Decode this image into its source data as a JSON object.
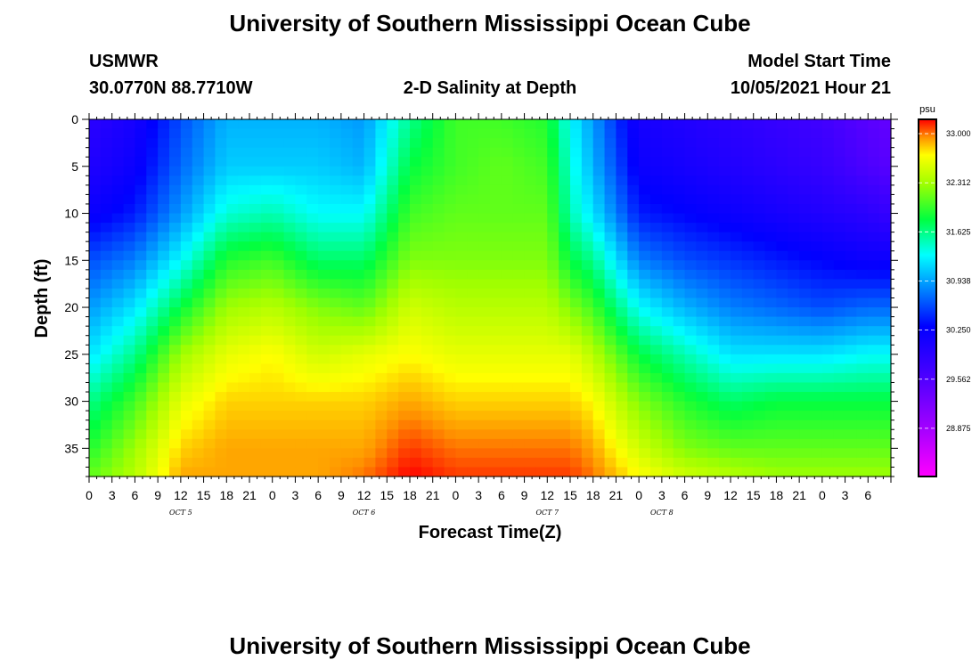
{
  "header": {
    "title_top": "University of Southern Mississippi Ocean Cube",
    "title_bottom": "University of Southern Mississippi Ocean Cube",
    "station": "USMWR",
    "coords": "30.0770N  88.7710W",
    "plot_title": "2-D Salinity at Depth",
    "model_label": "Model Start Time",
    "model_time": "10/05/2021 Hour 21"
  },
  "chart_data": {
    "type": "heatmap",
    "xlabel": "Forecast Time(Z)",
    "ylabel": "Depth (ft)",
    "x_ticks": [
      "0",
      "3",
      "6",
      "9",
      "12",
      "15",
      "18",
      "21",
      "0",
      "3",
      "6",
      "9",
      "12",
      "15",
      "18",
      "21",
      "0",
      "3",
      "6",
      "9",
      "12",
      "15",
      "18",
      "21",
      "0",
      "3",
      "6",
      "9",
      "12",
      "15",
      "18",
      "21",
      "0",
      "3",
      "6"
    ],
    "x_hours": [
      0,
      105
    ],
    "date_labels": [
      {
        "label": "OCT 5",
        "hour": 12
      },
      {
        "label": "OCT 6",
        "hour": 36
      },
      {
        "label": "OCT 7",
        "hour": 60
      },
      {
        "label": "OCT 8",
        "hour": 75
      }
    ],
    "y_ticks": [
      0,
      5,
      10,
      15,
      20,
      25,
      30,
      35
    ],
    "ylim": [
      0,
      38
    ],
    "colorbar": {
      "unit": "psu",
      "ticks": [
        "33.000",
        "32.312",
        "31.625",
        "30.938",
        "30.250",
        "29.562",
        "28.875"
      ],
      "range": [
        28.2,
        33.2
      ]
    },
    "depth_profile_hours": [
      0,
      6,
      12,
      18,
      24,
      30,
      36,
      42,
      48,
      54,
      60,
      63,
      66,
      72,
      78,
      84,
      90,
      96,
      102,
      105
    ],
    "depth_levels_ft": [
      0,
      5,
      10,
      15,
      20,
      25,
      30,
      35,
      38
    ],
    "salinity_psu": [
      [
        29.9,
        30.0,
        30.2,
        30.6,
        30.9,
        31.2,
        31.6,
        31.9,
        32.1
      ],
      [
        30.1,
        30.2,
        30.4,
        30.8,
        31.2,
        31.6,
        32.0,
        32.3,
        32.4
      ],
      [
        30.6,
        30.7,
        30.9,
        31.3,
        31.8,
        32.3,
        32.6,
        32.8,
        32.9
      ],
      [
        31.0,
        31.1,
        31.4,
        31.9,
        32.3,
        32.6,
        32.8,
        32.9,
        32.9
      ],
      [
        31.0,
        31.1,
        31.5,
        32.0,
        32.4,
        32.7,
        32.8,
        32.9,
        32.9
      ],
      [
        31.0,
        31.1,
        31.3,
        31.7,
        32.2,
        32.5,
        32.8,
        32.9,
        32.9
      ],
      [
        30.9,
        31.0,
        31.3,
        31.7,
        32.1,
        32.6,
        32.8,
        32.9,
        33.0
      ],
      [
        31.6,
        31.8,
        32.0,
        32.2,
        32.5,
        32.7,
        32.9,
        33.1,
        33.2
      ],
      [
        32.0,
        32.0,
        32.1,
        32.2,
        32.4,
        32.6,
        32.8,
        33.0,
        33.1
      ],
      [
        32.0,
        32.1,
        32.1,
        32.2,
        32.4,
        32.6,
        32.8,
        33.0,
        33.1
      ],
      [
        31.9,
        32.0,
        32.1,
        32.2,
        32.4,
        32.6,
        32.8,
        33.0,
        33.1
      ],
      [
        31.3,
        31.4,
        31.5,
        31.8,
        32.2,
        32.6,
        32.8,
        33.0,
        33.1
      ],
      [
        30.9,
        31.0,
        31.2,
        31.6,
        32.0,
        32.4,
        32.7,
        32.9,
        33.0
      ],
      [
        30.1,
        30.2,
        30.4,
        30.8,
        31.3,
        31.8,
        32.2,
        32.5,
        32.7
      ],
      [
        30.0,
        30.1,
        30.3,
        30.6,
        31.0,
        31.5,
        31.9,
        32.2,
        32.5
      ],
      [
        29.9,
        30.0,
        30.2,
        30.5,
        30.8,
        31.2,
        31.7,
        32.1,
        32.4
      ],
      [
        29.8,
        29.9,
        30.1,
        30.4,
        30.7,
        31.2,
        31.8,
        32.1,
        32.3
      ],
      [
        29.7,
        29.8,
        30.0,
        30.3,
        30.6,
        31.2,
        31.8,
        32.1,
        32.3
      ],
      [
        29.5,
        29.6,
        29.9,
        30.2,
        30.7,
        31.3,
        31.8,
        32.1,
        32.3
      ],
      [
        29.4,
        29.5,
        29.8,
        30.2,
        30.7,
        31.3,
        31.8,
        32.1,
        32.3
      ]
    ]
  }
}
